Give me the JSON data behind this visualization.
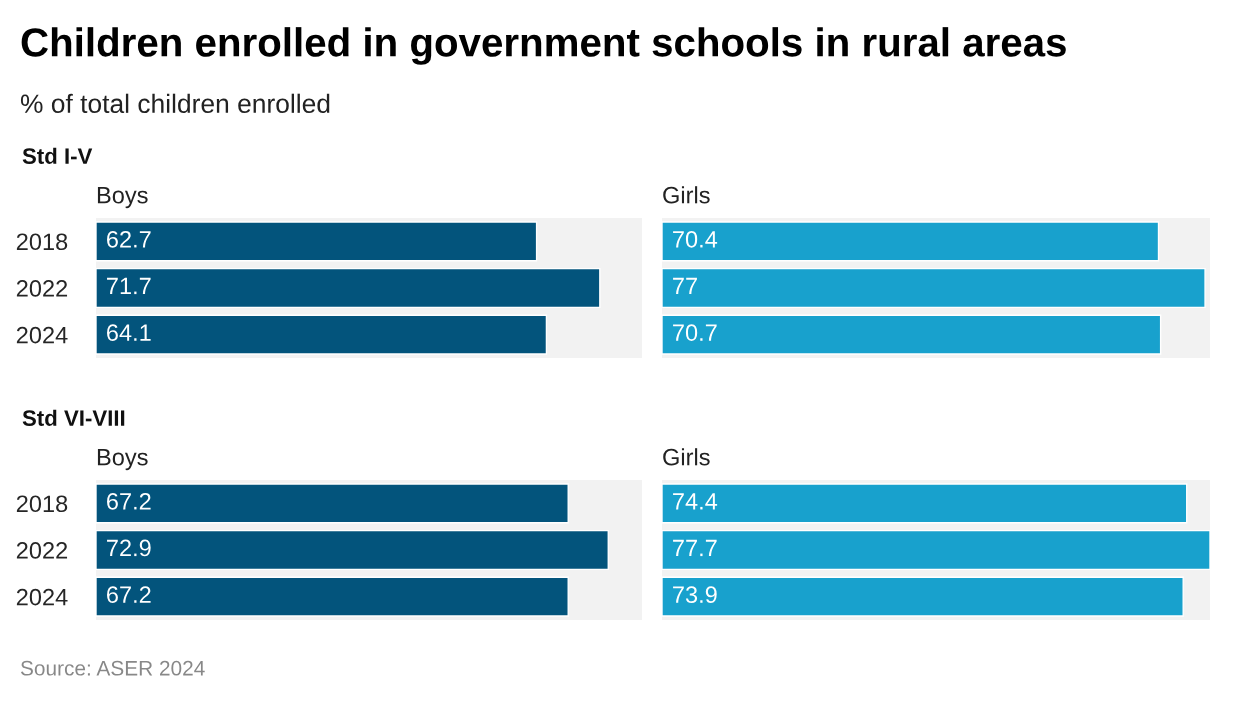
{
  "chart_data": [
    {
      "type": "bar",
      "orientation": "horizontal",
      "title": "Boys",
      "subtitle": "Std I-V",
      "categories": [
        "2018",
        "2022",
        "2024"
      ],
      "values": [
        62.7,
        71.7,
        64.1
      ],
      "color": "#03547c",
      "xlim": [
        0,
        77.7
      ],
      "data_labels": true,
      "tick_labels": "y",
      "annotations": [
        "Children enrolled in government schools in rural areas",
        "% of total children enrolled",
        "Source: ASER 2024"
      ]
    },
    {
      "type": "bar",
      "orientation": "horizontal",
      "title": "Girls",
      "categories": [
        "2018",
        "2022",
        "2024"
      ],
      "values": [
        70.4,
        77,
        70.7
      ],
      "color": "#18a1cd",
      "xlim": [
        0,
        77.7
      ],
      "data_labels": true,
      "tick_labels": false
    },
    {
      "type": "bar",
      "orientation": "horizontal",
      "title": "Boys",
      "subtitle": "Std VI-VIII",
      "categories": [
        "2018",
        "2022",
        "2024"
      ],
      "values": [
        67.2,
        72.9,
        67.2
      ],
      "color": "#03547c",
      "xlim": [
        0,
        77.7
      ],
      "data_labels": true,
      "tick_labels": "y"
    },
    {
      "type": "bar",
      "orientation": "horizontal",
      "title": "Girls",
      "categories": [
        "2018",
        "2022",
        "2024"
      ],
      "values": [
        74.4,
        77.7,
        73.9
      ],
      "color": "#18a1cd",
      "xlim": [
        0,
        77.7
      ],
      "data_labels": true,
      "tick_labels": false
    }
  ]
}
